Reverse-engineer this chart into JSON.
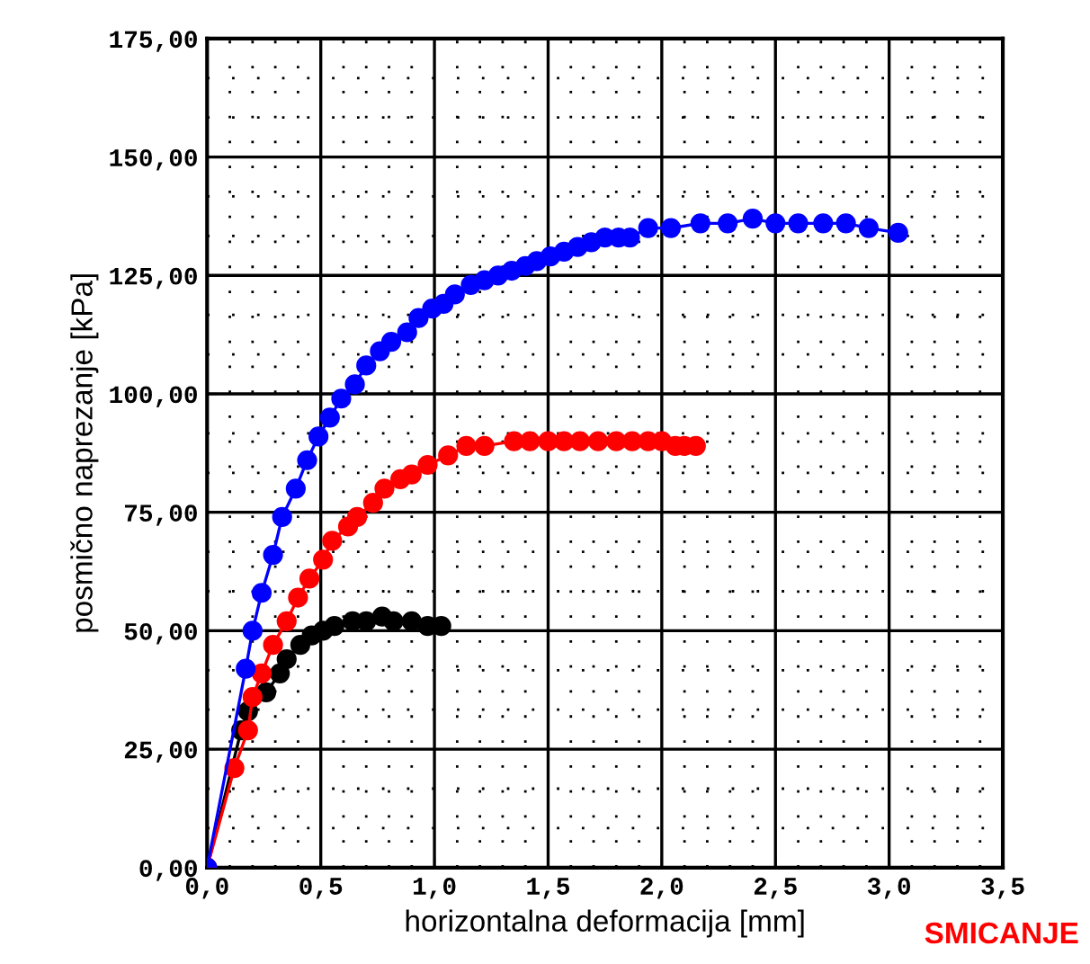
{
  "chart_data": {
    "type": "line",
    "xlabel": "horizontalna deformacija [mm]",
    "ylabel": "posmično naprezanje [kPa]",
    "annotations": [
      "SMICANJE"
    ],
    "xlim": [
      0,
      3.5
    ],
    "ylim": [
      0,
      175
    ],
    "xticks": [
      {
        "value": 0,
        "label": "0,0"
      },
      {
        "value": 0.5,
        "label": "0,5"
      },
      {
        "value": 1,
        "label": "1,0"
      },
      {
        "value": 1.5,
        "label": "1,5"
      },
      {
        "value": 2,
        "label": "2,0"
      },
      {
        "value": 2.5,
        "label": "2,5"
      },
      {
        "value": 3,
        "label": "3,0"
      },
      {
        "value": 3.5,
        "label": "3,5"
      }
    ],
    "yticks": [
      {
        "value": 0,
        "label": "0,00"
      },
      {
        "value": 25,
        "label": "25,00"
      },
      {
        "value": 50,
        "label": "50,00"
      },
      {
        "value": 75,
        "label": "75,00"
      },
      {
        "value": 100,
        "label": "100,00"
      },
      {
        "value": 125,
        "label": "125,00"
      },
      {
        "value": 150,
        "label": "150,00"
      },
      {
        "value": 175,
        "label": "175,00"
      }
    ],
    "grid": true,
    "marker": "circle",
    "line_style": "solid",
    "legend": false,
    "series": [
      {
        "color": "#0000ff",
        "x": [
          0,
          0.17,
          0.2,
          0.24,
          0.29,
          0.33,
          0.39,
          0.44,
          0.49,
          0.54,
          0.59,
          0.65,
          0.7,
          0.76,
          0.81,
          0.88,
          0.93,
          0.99,
          1.04,
          1.09,
          1.16,
          1.22,
          1.28,
          1.34,
          1.4,
          1.45,
          1.51,
          1.57,
          1.63,
          1.69,
          1.75,
          1.81,
          1.86,
          1.94,
          2.04,
          2.17,
          2.29,
          2.4,
          2.5,
          2.6,
          2.71,
          2.81,
          2.91,
          3.04
        ],
        "values": [
          0,
          42,
          50,
          58,
          66,
          74,
          80,
          86,
          91,
          95,
          99,
          102,
          106,
          109,
          111,
          113,
          116,
          118,
          119,
          121,
          123,
          124,
          125,
          126,
          127,
          128,
          129,
          130,
          131,
          132,
          133,
          133,
          133,
          135,
          135,
          136,
          136,
          137,
          136,
          136,
          136,
          136,
          135,
          134
        ]
      },
      {
        "color": "#ff0000",
        "x": [
          0,
          0.12,
          0.18,
          0.2,
          0.24,
          0.29,
          0.35,
          0.4,
          0.45,
          0.51,
          0.55,
          0.62,
          0.66,
          0.73,
          0.78,
          0.85,
          0.9,
          0.97,
          1.06,
          1.14,
          1.22,
          1.35,
          1.42,
          1.5,
          1.57,
          1.64,
          1.72,
          1.8,
          1.87,
          1.94,
          2.0,
          2.06,
          2.1,
          2.15
        ],
        "values": [
          0,
          21,
          29,
          36,
          41,
          47,
          52,
          57,
          61,
          65,
          69,
          72,
          74,
          77,
          80,
          82,
          83,
          85,
          87,
          89,
          89,
          90,
          90,
          90,
          90,
          90,
          90,
          90,
          90,
          90,
          90,
          89,
          89,
          89
        ]
      },
      {
        "color": "#000000",
        "x": [
          0,
          0.15,
          0.18,
          0.26,
          0.32,
          0.35,
          0.41,
          0.46,
          0.51,
          0.56,
          0.64,
          0.7,
          0.77,
          0.82,
          0.9,
          0.97,
          1.03
        ],
        "values": [
          0,
          29,
          33,
          37,
          41,
          44,
          47,
          49,
          50,
          51,
          52,
          52,
          53,
          52,
          52,
          51,
          51
        ]
      }
    ]
  }
}
